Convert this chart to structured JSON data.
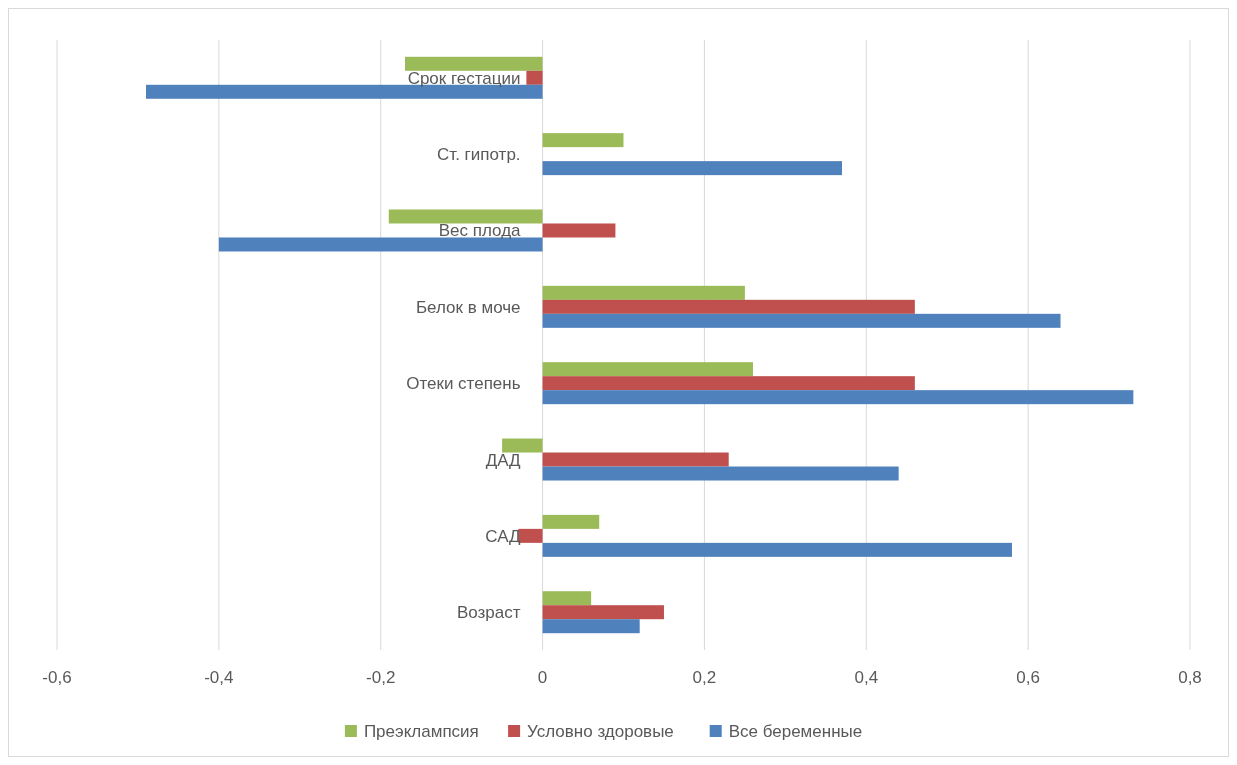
{
  "chart_data": {
    "type": "bar",
    "orientation": "horizontal",
    "categories": [
      "Срок гестации",
      "Ст. гипотр.",
      "Вес плода",
      "Белок в моче",
      "Отеки степень",
      "ДАД",
      "САД",
      "Возраст"
    ],
    "series": [
      {
        "name": "Преэклампсия",
        "color": "#9bbb59",
        "values": [
          -0.17,
          0.1,
          -0.19,
          0.25,
          0.26,
          -0.05,
          0.07,
          0.06
        ]
      },
      {
        "name": "Условно здоровые",
        "color": "#c0504d",
        "values": [
          -0.02,
          null,
          0.09,
          0.46,
          0.46,
          0.23,
          -0.03,
          0.15
        ]
      },
      {
        "name": "Все беременные",
        "color": "#4f81bd",
        "values": [
          -0.49,
          0.37,
          -0.4,
          0.64,
          0.73,
          0.44,
          0.58,
          0.12
        ]
      }
    ],
    "xlim": [
      -0.6,
      0.8
    ],
    "xticks": [
      {
        "value": -0.6,
        "label": "-0,6"
      },
      {
        "value": -0.4,
        "label": "-0,4"
      },
      {
        "value": -0.2,
        "label": "-0,2"
      },
      0,
      {
        "value": 0.2,
        "label": "0,2"
      },
      {
        "value": 0.4,
        "label": "0,4"
      },
      {
        "value": 0.6,
        "label": "0,6"
      },
      {
        "value": 0.8,
        "label": "0,8"
      }
    ],
    "grid": "x",
    "legend": "bottom"
  }
}
